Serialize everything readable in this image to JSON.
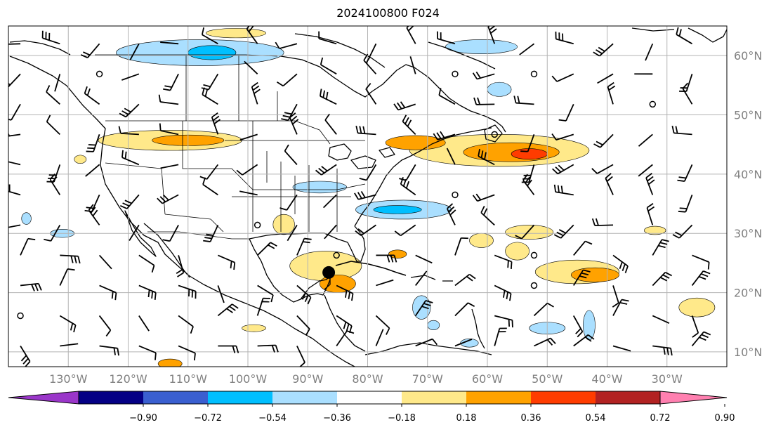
{
  "title": "2024100800 F024",
  "map": {
    "lon_labels": [
      "130°W",
      "120°W",
      "110°W",
      "100°W",
      "90°W",
      "80°W",
      "70°W",
      "60°W",
      "50°W",
      "40°W",
      "30°W"
    ],
    "lon_values": [
      -130,
      -120,
      -110,
      -100,
      -90,
      -80,
      -70,
      -60,
      -50,
      -40,
      -30
    ],
    "lat_labels": [
      "60°N",
      "50°N",
      "40°N",
      "30°N",
      "20°N",
      "10°N"
    ],
    "lat_values": [
      60,
      50,
      40,
      30,
      20,
      10
    ],
    "extent": {
      "lon_min": -140,
      "lon_max": -20,
      "lat_min": 7.5,
      "lat_max": 65
    },
    "grid": true,
    "storm_marker": {
      "lon": -86.5,
      "lat": 23.4
    }
  },
  "colorbar": {
    "tick_labels": [
      "−0.90",
      "−0.72",
      "−0.54",
      "−0.36",
      "−0.18",
      "0.18",
      "0.36",
      "0.54",
      "0.72",
      "0.90"
    ],
    "colors": [
      "#9a36c9",
      "#050085",
      "#3a5fd0",
      "#00bfff",
      "#aadfff",
      "#ffffff",
      "#ffe98a",
      "#ffa200",
      "#ff3c00",
      "#b22222",
      "#ff80b0"
    ]
  },
  "anomalies": [
    {
      "lon": -108,
      "lat": 60.5,
      "rx": 14,
      "ry": 2.2,
      "value": -0.25
    },
    {
      "lon": -106,
      "lat": 60.5,
      "rx": 4,
      "ry": 1.2,
      "value": -0.4
    },
    {
      "lon": -102,
      "lat": 63.8,
      "rx": 5,
      "ry": 0.8,
      "value": 0.25
    },
    {
      "lon": -61,
      "lat": 61.5,
      "rx": 6,
      "ry": 1.2,
      "value": -0.25
    },
    {
      "lon": -58,
      "lat": 54.3,
      "rx": 2,
      "ry": 1.2,
      "value": -0.2
    },
    {
      "lon": -113,
      "lat": 45.7,
      "rx": 12,
      "ry": 1.7,
      "value": 0.25
    },
    {
      "lon": -110,
      "lat": 45.7,
      "rx": 6,
      "ry": 0.9,
      "value": 0.4
    },
    {
      "lon": -88,
      "lat": 37.8,
      "rx": 4.5,
      "ry": 1.0,
      "value": -0.25
    },
    {
      "lon": -58,
      "lat": 44.0,
      "rx": 15,
      "ry": 2.7,
      "value": 0.3
    },
    {
      "lon": -56,
      "lat": 43.7,
      "rx": 8,
      "ry": 1.6,
      "value": 0.45
    },
    {
      "lon": -53,
      "lat": 43.4,
      "rx": 3,
      "ry": 0.9,
      "value": 0.65
    },
    {
      "lon": -72,
      "lat": 45.3,
      "rx": 5,
      "ry": 1.2,
      "value": 0.4
    },
    {
      "lon": -74,
      "lat": 34.0,
      "rx": 8,
      "ry": 1.6,
      "value": -0.25
    },
    {
      "lon": -75,
      "lat": 34.0,
      "rx": 4,
      "ry": 0.7,
      "value": -0.4
    },
    {
      "lon": -94,
      "lat": 31.5,
      "rx": 1.8,
      "ry": 1.7,
      "value": 0.35
    },
    {
      "lon": -87,
      "lat": 24.5,
      "rx": 6,
      "ry": 2.5,
      "value": 0.3
    },
    {
      "lon": -85,
      "lat": 21.5,
      "rx": 3,
      "ry": 1.5,
      "value": 0.45
    },
    {
      "lon": -61,
      "lat": 28.8,
      "rx": 2,
      "ry": 1.2,
      "value": 0.3
    },
    {
      "lon": -53,
      "lat": 30.2,
      "rx": 4,
      "ry": 1.2,
      "value": 0.3
    },
    {
      "lon": -55,
      "lat": 27.0,
      "rx": 2,
      "ry": 1.5,
      "value": 0.3
    },
    {
      "lon": -45,
      "lat": 23.5,
      "rx": 7,
      "ry": 2.0,
      "value": 0.3
    },
    {
      "lon": -42,
      "lat": 23.0,
      "rx": 4,
      "ry": 1.2,
      "value": 0.45
    },
    {
      "lon": -32,
      "lat": 30.5,
      "rx": 1.8,
      "ry": 0.7,
      "value": 0.3
    },
    {
      "lon": -25,
      "lat": 17.5,
      "rx": 3,
      "ry": 1.6,
      "value": 0.3
    },
    {
      "lon": -43,
      "lat": 14.5,
      "rx": 1.0,
      "ry": 2.5,
      "value": -0.3
    },
    {
      "lon": -50,
      "lat": 14.0,
      "rx": 3,
      "ry": 1.0,
      "value": -0.25
    },
    {
      "lon": -71,
      "lat": 17.5,
      "rx": 1.5,
      "ry": 2.0,
      "value": -0.3
    },
    {
      "lon": -131,
      "lat": 30.0,
      "rx": 2,
      "ry": 0.7,
      "value": -0.25
    },
    {
      "lon": -137,
      "lat": 32.5,
      "rx": 0.8,
      "ry": 1.0,
      "value": -0.25
    },
    {
      "lon": -113,
      "lat": 8.0,
      "rx": 2,
      "ry": 0.8,
      "value": 0.4
    },
    {
      "lon": -63,
      "lat": 11.5,
      "rx": 1.5,
      "ry": 0.7,
      "value": -0.25
    },
    {
      "lon": -99,
      "lat": 14.0,
      "rx": 2,
      "ry": 0.6,
      "value": 0.25
    },
    {
      "lon": -128,
      "lat": 42.5,
      "rx": 1,
      "ry": 0.7,
      "value": 0.25
    },
    {
      "lon": -75,
      "lat": 26.5,
      "rx": 1.5,
      "ry": 0.7,
      "value": 0.4
    },
    {
      "lon": -69,
      "lat": 14.5,
      "rx": 1.0,
      "ry": 0.8,
      "value": -0.25
    }
  ]
}
